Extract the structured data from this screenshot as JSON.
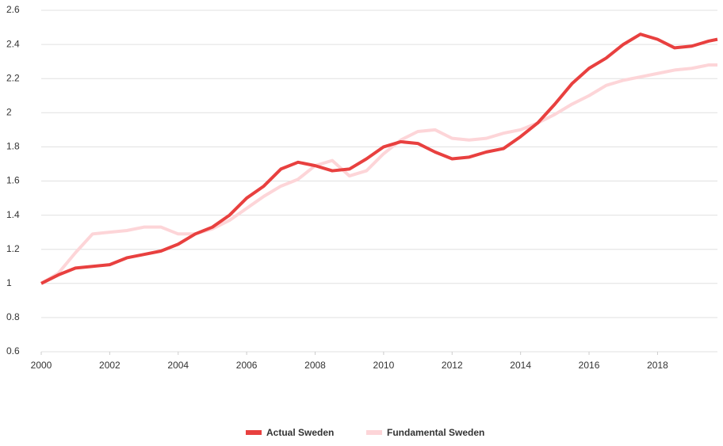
{
  "chart_data": {
    "type": "line",
    "x": [
      2000,
      2000.5,
      2001,
      2001.5,
      2002,
      2002.5,
      2003,
      2003.5,
      2004,
      2004.5,
      2005,
      2005.5,
      2006,
      2006.5,
      2007,
      2007.5,
      2008,
      2008.5,
      2009,
      2009.5,
      2010,
      2010.5,
      2011,
      2011.5,
      2012,
      2012.5,
      2013,
      2013.5,
      2014,
      2014.5,
      2015,
      2015.5,
      2016,
      2016.5,
      2017,
      2017.5,
      2018,
      2018.5,
      2019,
      2019.5,
      2019.75
    ],
    "series": [
      {
        "name": "Actual Sweden",
        "color": "#e8403f",
        "values": [
          1.0,
          1.05,
          1.09,
          1.1,
          1.11,
          1.15,
          1.17,
          1.19,
          1.23,
          1.29,
          1.33,
          1.4,
          1.5,
          1.57,
          1.67,
          1.71,
          1.69,
          1.66,
          1.67,
          1.73,
          1.8,
          1.83,
          1.82,
          1.77,
          1.73,
          1.74,
          1.77,
          1.79,
          1.86,
          1.94,
          2.05,
          2.17,
          2.26,
          2.32,
          2.4,
          2.46,
          2.43,
          2.38,
          2.39,
          2.42,
          2.43
        ]
      },
      {
        "name": "Fundamental Sweden",
        "color": "#fdd5d8",
        "values": [
          1.0,
          1.06,
          1.18,
          1.29,
          1.3,
          1.31,
          1.33,
          1.33,
          1.29,
          1.29,
          1.32,
          1.37,
          1.44,
          1.51,
          1.57,
          1.61,
          1.69,
          1.72,
          1.63,
          1.66,
          1.76,
          1.84,
          1.89,
          1.9,
          1.85,
          1.84,
          1.85,
          1.88,
          1.9,
          1.94,
          1.99,
          2.05,
          2.1,
          2.16,
          2.19,
          2.21,
          2.23,
          2.25,
          2.26,
          2.28,
          2.28
        ]
      }
    ],
    "xlim": [
      2000,
      2019.75
    ],
    "xticks": [
      2000,
      2002,
      2004,
      2006,
      2008,
      2010,
      2012,
      2014,
      2016,
      2018
    ],
    "ylim": [
      0.6,
      2.6
    ],
    "yticks": [
      0.6,
      0.8,
      1,
      1.2,
      1.4,
      1.6,
      1.8,
      2,
      2.2,
      2.4,
      2.6
    ],
    "grid": true,
    "legend": "bottom"
  }
}
